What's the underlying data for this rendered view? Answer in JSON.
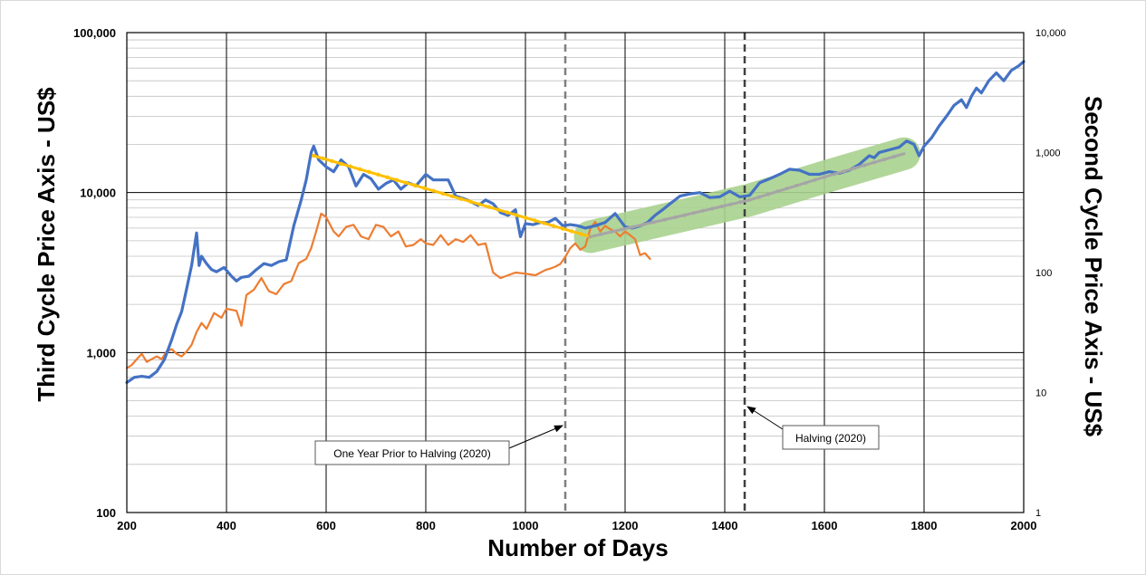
{
  "chart_data": {
    "type": "line",
    "xlabel": "Number of Days",
    "ylabel_left": "Third Cycle Price Axis - US$",
    "ylabel_right": "Second Cycle Price Axis - US$",
    "x_range": [
      200,
      2000
    ],
    "x_ticks": [
      200,
      400,
      600,
      800,
      1000,
      1200,
      1400,
      1600,
      1800,
      2000
    ],
    "y_left_scale": "log",
    "y_left_range": [
      100,
      100000
    ],
    "y_left_ticks": [
      {
        "value": 100,
        "label": "100"
      },
      {
        "value": 1000,
        "label": "1,000"
      },
      {
        "value": 10000,
        "label": "10,000"
      },
      {
        "value": 100000,
        "label": "100,000"
      }
    ],
    "y_right_scale": "log",
    "y_right_range": [
      1,
      10000
    ],
    "y_right_ticks": [
      {
        "value": 1,
        "label": "1"
      },
      {
        "value": 10,
        "label": "10"
      },
      {
        "value": 100,
        "label": "100"
      },
      {
        "value": 1000,
        "label": "1,000"
      },
      {
        "value": 10000,
        "label": "10,000"
      }
    ],
    "series": [
      {
        "name": "Third Cycle (blue)",
        "color": "#4472c4",
        "axis": "left",
        "x": [
          200,
          215,
          230,
          245,
          260,
          275,
          290,
          300,
          310,
          320,
          330,
          340,
          345,
          350,
          360,
          370,
          380,
          395,
          410,
          420,
          430,
          445,
          460,
          475,
          490,
          505,
          520,
          535,
          550,
          560,
          570,
          575,
          585,
          600,
          615,
          630,
          645,
          660,
          675,
          690,
          705,
          720,
          735,
          750,
          765,
          780,
          800,
          815,
          830,
          845,
          860,
          875,
          890,
          905,
          920,
          935,
          950,
          965,
          980,
          990,
          1000,
          1015,
          1030,
          1045,
          1060,
          1075,
          1090,
          1105,
          1120,
          1140,
          1160,
          1180,
          1200,
          1215,
          1230,
          1245,
          1260,
          1275,
          1290,
          1310,
          1330,
          1350,
          1370,
          1390,
          1410,
          1430,
          1450,
          1470,
          1490,
          1510,
          1530,
          1550,
          1570,
          1590,
          1610,
          1630,
          1650,
          1670,
          1690,
          1700,
          1710,
          1730,
          1750,
          1765,
          1780,
          1790,
          1800,
          1815,
          1830,
          1845,
          1860,
          1875,
          1885,
          1895,
          1905,
          1915,
          1930,
          1945,
          1960,
          1975,
          1990,
          2000
        ],
        "values": [
          650,
          700,
          710,
          700,
          760,
          900,
          1200,
          1500,
          1800,
          2500,
          3500,
          5600,
          3500,
          4000,
          3600,
          3300,
          3200,
          3400,
          3000,
          2800,
          2950,
          3000,
          3300,
          3600,
          3500,
          3700,
          3800,
          6200,
          9000,
          12000,
          17800,
          19500,
          16000,
          14500,
          13500,
          16000,
          14500,
          11000,
          13000,
          12200,
          10500,
          11400,
          12000,
          10500,
          11500,
          11000,
          13000,
          12000,
          12000,
          12000,
          9500,
          9200,
          8800,
          8300,
          9000,
          8500,
          7500,
          7200,
          7800,
          5300,
          6400,
          6300,
          6500,
          6500,
          6900,
          6200,
          6300,
          6200,
          6000,
          6200,
          6500,
          7400,
          6100,
          6000,
          6200,
          6500,
          7200,
          7800,
          8500,
          9500,
          9800,
          10000,
          9300,
          9400,
          10200,
          9400,
          9600,
          11500,
          12200,
          13000,
          14000,
          13800,
          13000,
          13000,
          13500,
          13200,
          13800,
          15000,
          17000,
          16500,
          17800,
          18500,
          19200,
          21000,
          20000,
          17000,
          19500,
          22000,
          26000,
          30000,
          35000,
          38000,
          34000,
          40000,
          45000,
          42000,
          50000,
          56000,
          50000,
          58000,
          62000,
          66000
        ]
      },
      {
        "name": "Second Cycle (orange)",
        "color": "#ed7d31",
        "axis": "right",
        "x": [
          200,
          210,
          220,
          230,
          240,
          250,
          260,
          270,
          280,
          290,
          300,
          310,
          320,
          330,
          340,
          350,
          360,
          375,
          390,
          400,
          420,
          430,
          440,
          455,
          470,
          485,
          500,
          515,
          530,
          545,
          560,
          570,
          580,
          590,
          600,
          615,
          625,
          640,
          655,
          670,
          685,
          700,
          715,
          730,
          745,
          760,
          775,
          790,
          800,
          815,
          830,
          845,
          860,
          875,
          890,
          905,
          920,
          935,
          950,
          965,
          980,
          1000,
          1020,
          1040,
          1050,
          1060,
          1070,
          1080,
          1090,
          1100,
          1110,
          1120,
          1130,
          1140,
          1150,
          1160,
          1170,
          1180,
          1190,
          1200,
          1210,
          1220,
          1230,
          1240,
          1250
        ],
        "values": [
          16,
          17,
          19,
          21,
          18,
          19,
          20,
          19,
          22,
          23,
          21,
          20,
          22,
          25,
          32,
          38,
          34,
          46,
          42,
          50,
          48,
          36,
          65,
          72,
          90,
          70,
          66,
          80,
          85,
          120,
          130,
          160,
          220,
          310,
          290,
          220,
          200,
          240,
          250,
          200,
          190,
          250,
          240,
          200,
          220,
          165,
          170,
          190,
          175,
          170,
          205,
          170,
          190,
          180,
          205,
          170,
          175,
          100,
          90,
          95,
          100,
          98,
          95,
          105,
          108,
          112,
          118,
          135,
          160,
          175,
          155,
          165,
          230,
          265,
          220,
          245,
          230,
          220,
          200,
          220,
          205,
          190,
          140,
          145,
          130
        ]
      },
      {
        "name": "Decline trend (yellow)",
        "color": "#ffc000",
        "axis": "left",
        "x": [
          575,
          1130
        ],
        "values": [
          17000,
          5300
        ]
      },
      {
        "name": "Rise trend (grey)",
        "color": "#a5a5a5",
        "axis": "left",
        "x": [
          1130,
          1300,
          1450,
          1600,
          1760
        ],
        "values": [
          5300,
          7000,
          9000,
          12500,
          17500
        ]
      }
    ],
    "vertical_lines": [
      {
        "x": 1080,
        "label": "One Year Prior to Halving (2020)"
      },
      {
        "x": 1440,
        "label": "Halving (2020)"
      }
    ],
    "band_label": "",
    "colors": {
      "blue": "#4472c4",
      "orange": "#ed7d31",
      "yellow": "#ffc000",
      "grey": "#a5a5a5",
      "green_band": "#a9d18e",
      "dashed_grey": "#7f7f7f",
      "dashed_black": "#404040"
    }
  }
}
